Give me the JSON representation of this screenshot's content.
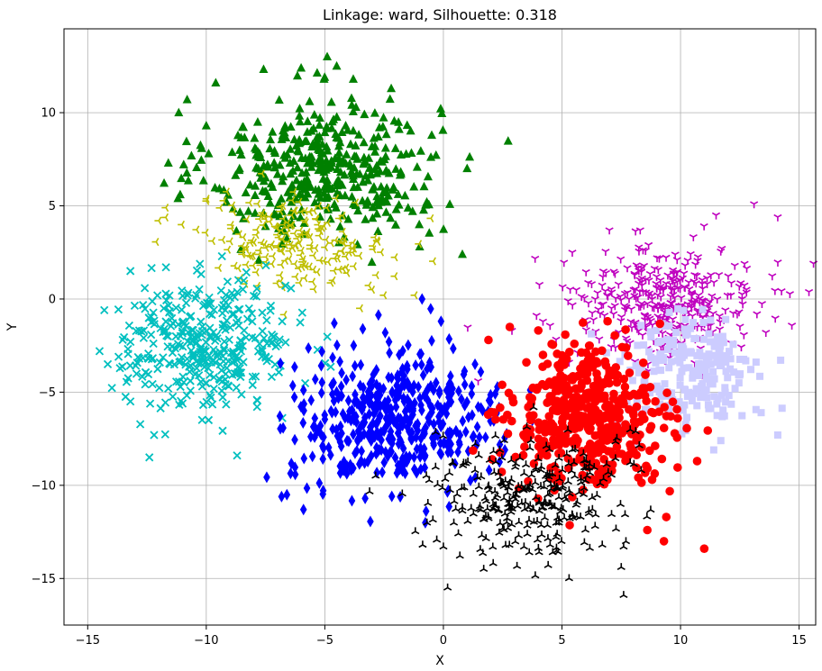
{
  "chart_data": {
    "type": "scatter",
    "title": "Linkage: ward, Silhouette: 0.318",
    "xlabel": "X",
    "ylabel": "Y",
    "xlim": [
      -16,
      15.7
    ],
    "ylim": [
      -17.5,
      14.5
    ],
    "xticks": [
      -15,
      -10,
      -5,
      0,
      5,
      10,
      15
    ],
    "yticks": [
      -15,
      -10,
      -5,
      0,
      5,
      10
    ],
    "xtick_labels": [
      "−15",
      "−10",
      "−5",
      "0",
      "5",
      "10",
      "15"
    ],
    "ytick_labels": [
      "−15",
      "−10",
      "−5",
      "0",
      "5",
      "10"
    ],
    "grid": true,
    "legend": "none",
    "series": [
      {
        "marker": "triangle",
        "color": "#008000",
        "center": [
          -5,
          7
        ],
        "spread": [
          2.4,
          1.9
        ],
        "count": 420,
        "extra_points": [
          [
            -4.9,
            13
          ],
          [
            -4.5,
            12.5
          ],
          [
            -9.6,
            11.6
          ],
          [
            -6,
            12.4
          ],
          [
            -10,
            9.3
          ],
          [
            -3.8,
            11.8
          ],
          [
            -2.2,
            11.3
          ],
          [
            -11.6,
            7.3
          ],
          [
            -9.9,
            7.8
          ],
          [
            -11.1,
            5.6
          ],
          [
            0.8,
            2.4
          ],
          [
            -1,
            2.8
          ],
          [
            1,
            7
          ],
          [
            -1.3,
            4.7
          ],
          [
            -0.7,
            5.2
          ]
        ]
      },
      {
        "marker": "tri-left",
        "color": "#bfbf00",
        "center": [
          -6.3,
          3.1
        ],
        "spread": [
          2.0,
          1.2
        ],
        "count": 210,
        "extra_points": [
          [
            -12,
            4.2
          ],
          [
            -11.7,
            4.9
          ],
          [
            -2.5,
            0.2
          ],
          [
            -3,
            0.5
          ],
          [
            -1.2,
            0.2
          ],
          [
            -3.5,
            -0.5
          ]
        ]
      },
      {
        "marker": "x",
        "color": "#00bfbf",
        "center": [
          -10,
          -2.5
        ],
        "spread": [
          1.8,
          1.7
        ],
        "count": 360,
        "extra_points": [
          [
            -14.5,
            -2.8
          ],
          [
            -14.3,
            -0.6
          ],
          [
            -13.2,
            -5.5
          ],
          [
            -12.2,
            -7.3
          ],
          [
            -12.4,
            -8.5
          ],
          [
            -9.9,
            -6.5
          ],
          [
            -8.7,
            -8.4
          ],
          [
            -13.2,
            1.5
          ],
          [
            -11.7,
            1.7
          ],
          [
            -6.8,
            -1.2
          ]
        ]
      },
      {
        "marker": "diamond",
        "color": "#0000ff",
        "center": [
          -2,
          -6.5
        ],
        "spread": [
          2.2,
          1.8
        ],
        "count": 460,
        "extra_points": [
          [
            -6.6,
            -10.5
          ],
          [
            -5.9,
            -11.3
          ],
          [
            -0.9,
            0
          ],
          [
            -4.6,
            -1.3
          ],
          [
            -3.4,
            -1.6
          ],
          [
            -0.1,
            -1.2
          ],
          [
            -3.3,
            -10.7
          ]
        ]
      },
      {
        "marker": "tri-down",
        "color": "#bf00bf",
        "center": [
          9.3,
          -0.2
        ],
        "spread": [
          2.0,
          1.5
        ],
        "count": 360,
        "extra_points": [
          [
            13.1,
            5.1
          ],
          [
            14.1,
            4.4
          ],
          [
            11.5,
            4.5
          ],
          [
            12.7,
            1.9
          ],
          [
            13.6,
            -1.8
          ],
          [
            7,
            3.7
          ],
          [
            8.3,
            3.7
          ],
          [
            5.3,
            -3.4
          ],
          [
            4.2,
            -1.2
          ]
        ]
      },
      {
        "marker": "square",
        "color": "#ccccff",
        "center": [
          10.3,
          -4
        ],
        "spread": [
          1.5,
          1.6
        ],
        "count": 220,
        "extra_points": [
          [
            14.1,
            -7.3
          ],
          [
            13.4,
            -6.1
          ],
          [
            11.4,
            -8.1
          ],
          [
            12.3,
            -4.8
          ],
          [
            11.7,
            -7.6
          ]
        ]
      },
      {
        "marker": "circle",
        "color": "#ff0000",
        "center": [
          6.1,
          -6.3
        ],
        "spread": [
          1.6,
          1.8
        ],
        "count": 470,
        "extra_points": [
          [
            11,
            -13.4
          ],
          [
            9.3,
            -13
          ],
          [
            8.6,
            -12.4
          ],
          [
            9.4,
            -11.7
          ],
          [
            8.8,
            -9.7
          ],
          [
            10.7,
            -8.7
          ],
          [
            1.9,
            -2.2
          ],
          [
            2.8,
            -1.5
          ],
          [
            3.5,
            -3.4
          ],
          [
            4.2,
            -3
          ]
        ]
      },
      {
        "marker": "tri-up",
        "color": "#000000",
        "center": [
          3.5,
          -10.5
        ],
        "spread": [
          2.0,
          1.7
        ],
        "count": 300,
        "extra_points": [
          [
            1.7,
            -14.5
          ],
          [
            0,
            -13.3
          ],
          [
            3.4,
            -13.3
          ],
          [
            5.3,
            -15
          ],
          [
            7.6,
            -15.9
          ],
          [
            7.5,
            -14.4
          ],
          [
            6.7,
            -13.2
          ],
          [
            7.6,
            -13.3
          ],
          [
            4.5,
            -13.2
          ]
        ]
      }
    ]
  }
}
